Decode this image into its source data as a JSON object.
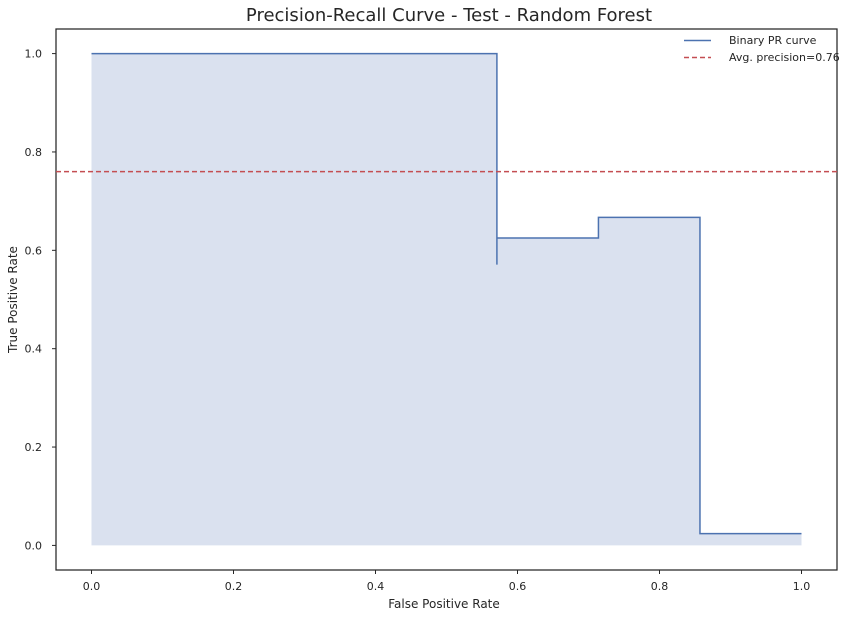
{
  "chart_data": {
    "type": "line",
    "title": "Precision-Recall Curve - Test - Random Forest",
    "xlabel": "False Positive Rate",
    "ylabel": "True Positive Rate",
    "xlim": [
      -0.05,
      1.05
    ],
    "ylim": [
      -0.05,
      1.05
    ],
    "xticks": [
      "0.0",
      "0.2",
      "0.4",
      "0.6",
      "0.8",
      "1.0"
    ],
    "yticks": [
      "0.0",
      "0.2",
      "0.4",
      "0.6",
      "0.8",
      "1.0"
    ],
    "grid": false,
    "legend_position": "top-right",
    "series": [
      {
        "name": "Binary PR curve",
        "step": "post",
        "fill": true,
        "x": [
          0.0,
          0.571,
          0.571,
          0.714,
          0.857,
          1.0
        ],
        "y": [
          1.0,
          0.571,
          0.625,
          0.667,
          0.024,
          0.024
        ]
      }
    ],
    "hlines": [
      {
        "name": "Avg. precision=0.76",
        "y": 0.76,
        "style": "dashed"
      }
    ],
    "colors": {
      "curve": "#4c72b0",
      "fill": "#dae1ef",
      "avg_line": "#c44e52",
      "axis": "#262626"
    }
  }
}
